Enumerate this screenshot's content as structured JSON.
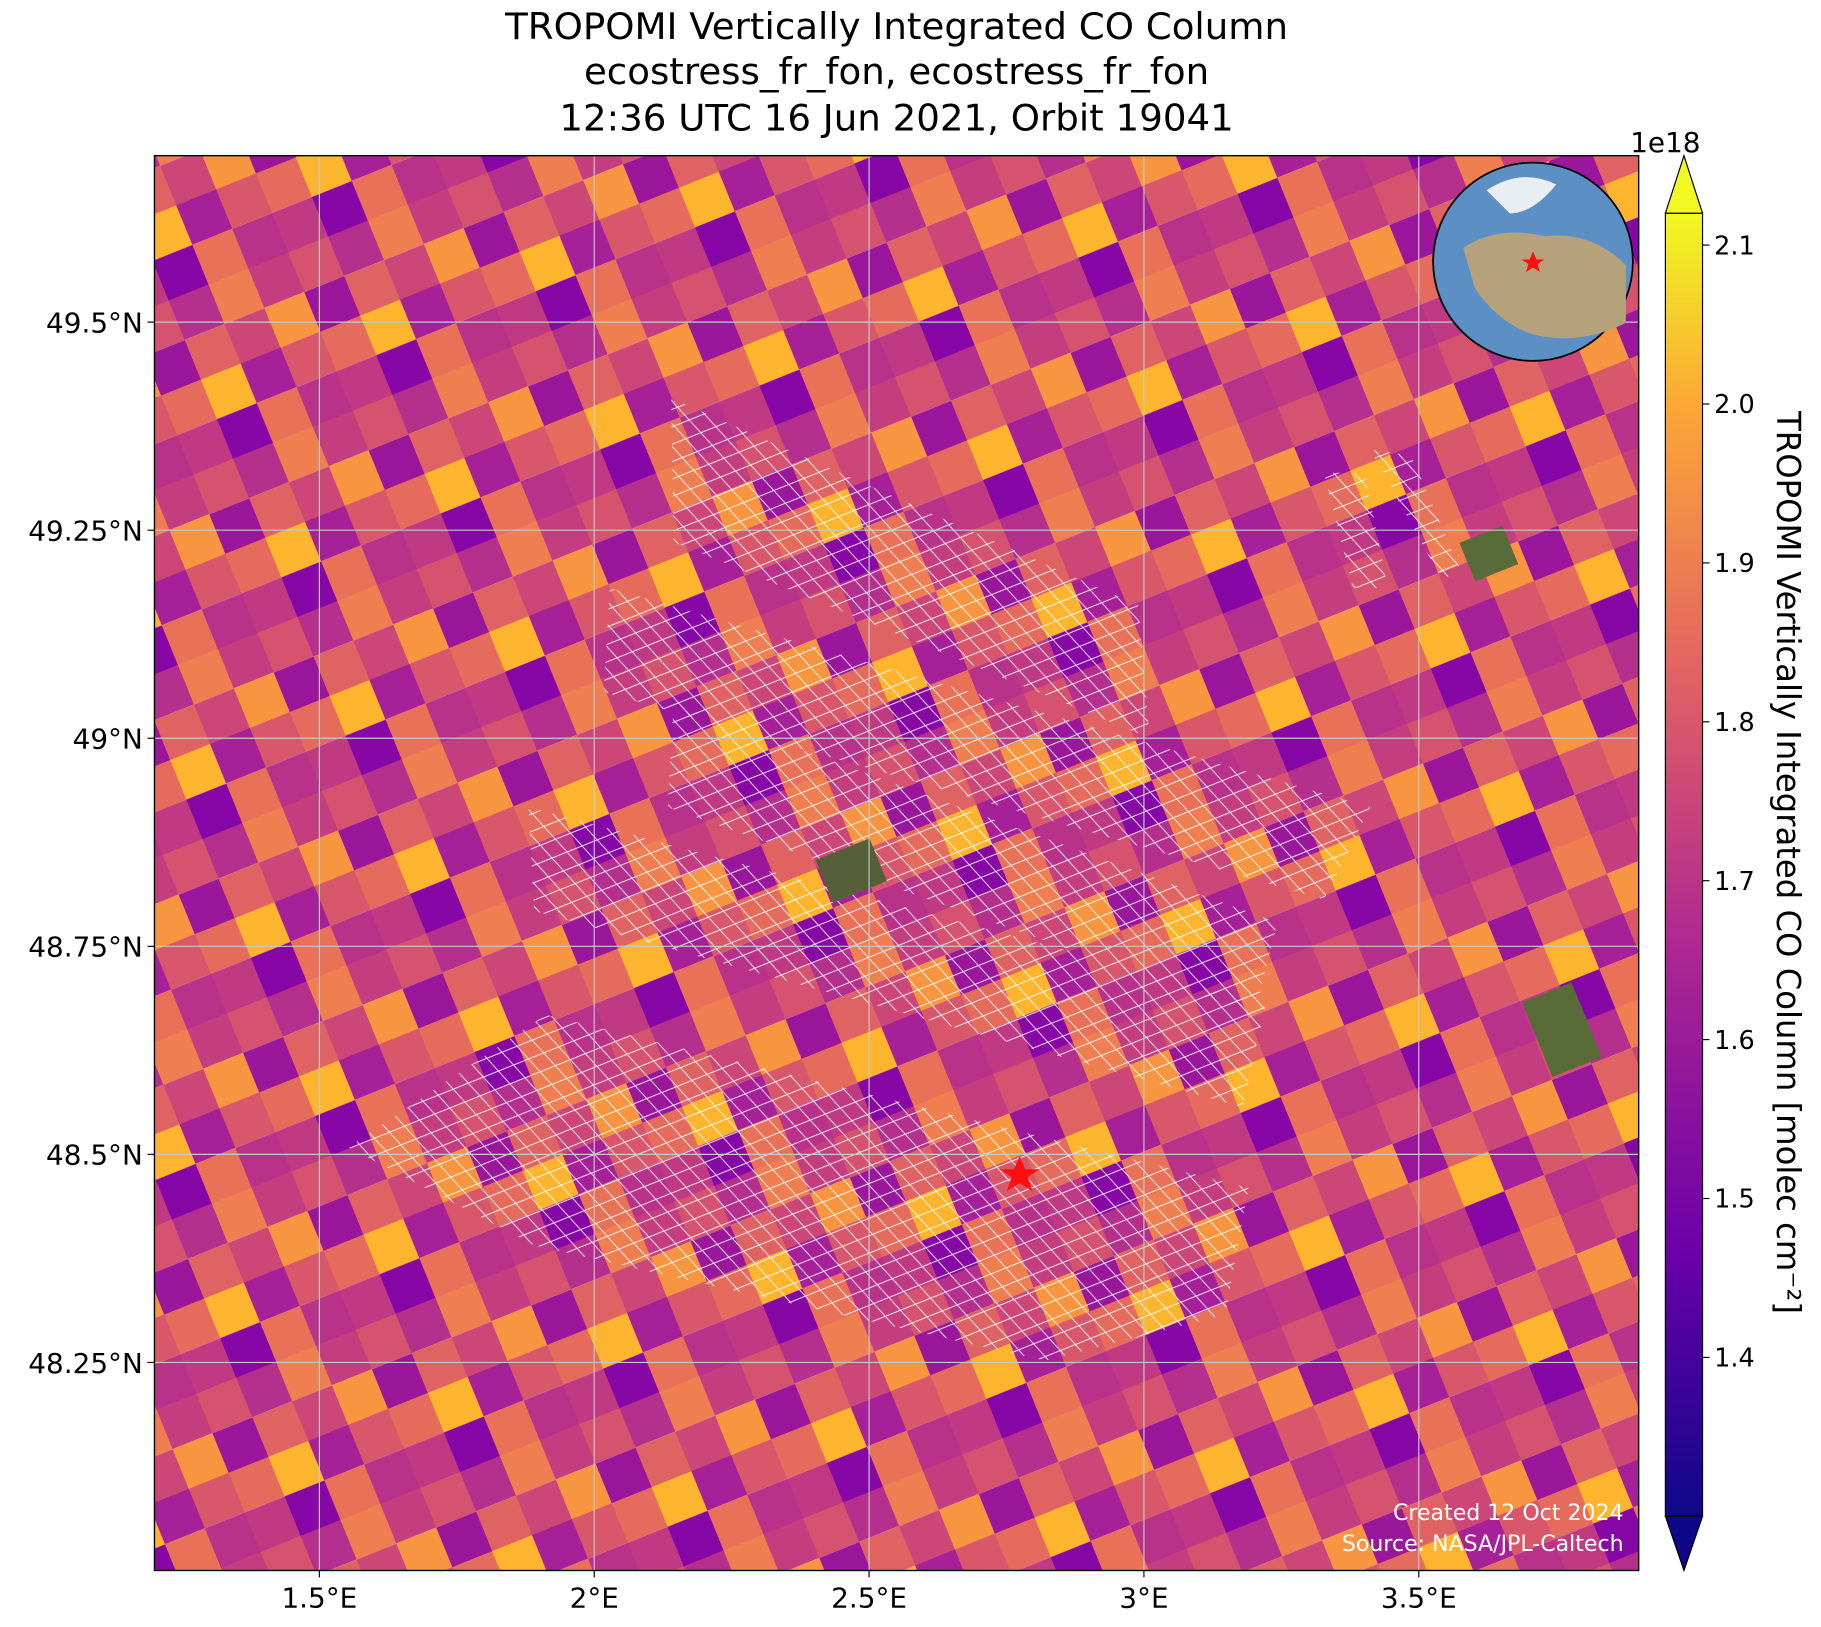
{
  "chart_data": {
    "type": "map",
    "title": [
      "TROPOMI Vertically Integrated CO Column",
      "ecostress_fr_fon, ecostress_fr_fon",
      "12:36 UTC 16 Jun 2021, Orbit 19041"
    ],
    "xlim": [
      1.2,
      3.9
    ],
    "ylim": [
      48.0,
      49.7
    ],
    "xticks": [
      {
        "value": 1.5,
        "label": "1.5°E"
      },
      {
        "value": 2,
        "label": "2°E"
      },
      {
        "value": 2.5,
        "label": "2.5°E"
      },
      {
        "value": 3,
        "label": "3°E"
      },
      {
        "value": 3.5,
        "label": "3.5°E"
      }
    ],
    "yticks": [
      {
        "value": 48.25,
        "label": "48.25°N"
      },
      {
        "value": 48.5,
        "label": "48.5°N"
      },
      {
        "value": 48.75,
        "label": "48.75°N"
      },
      {
        "value": 49,
        "label": "49°N"
      },
      {
        "value": 49.25,
        "label": "49.25°N"
      },
      {
        "value": 49.5,
        "label": "49.5°N"
      }
    ],
    "grid": true,
    "colorbar": {
      "label": "TROPOMI Vertically Integrated CO Column [molec cm⁻²]",
      "offset": "1e18",
      "lim": [
        1.3,
        2.12
      ],
      "ticks": [
        1.4,
        1.5,
        1.6,
        1.7,
        1.8,
        1.9,
        {
          "value": 2,
          "label": "2.0"
        },
        2.1
      ],
      "extend": "both"
    },
    "annotation": [
      "Created 12 Oct 2024",
      "Source: NASA/JPL-Caltech"
    ]
  }
}
